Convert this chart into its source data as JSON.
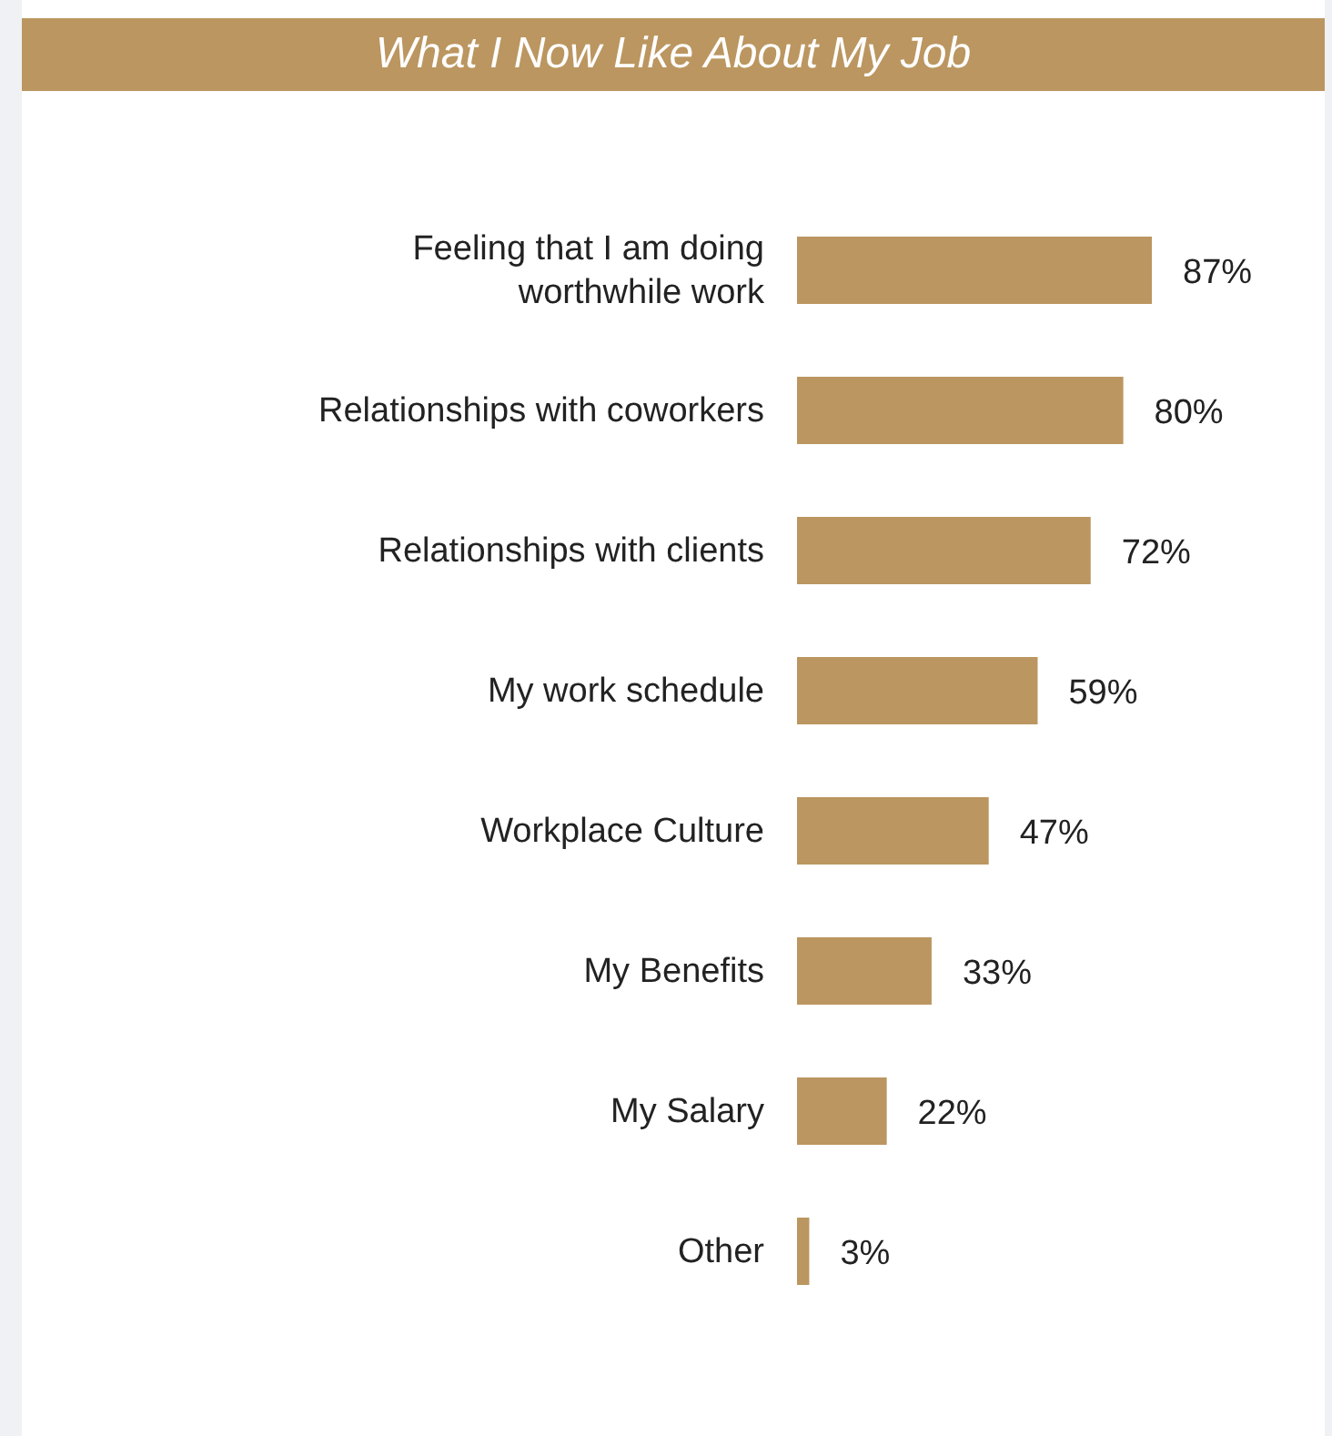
{
  "chart_data": {
    "type": "bar",
    "orientation": "horizontal",
    "title": "What I Now Like About My Job",
    "categories": [
      "Feeling that I am doing worthwhile work",
      "Relationships with coworkers",
      "Relationships with clients",
      "My work schedule",
      "Workplace Culture",
      "My Benefits",
      "My Salary",
      "Other"
    ],
    "values": [
      87,
      80,
      72,
      59,
      47,
      33,
      22,
      3
    ],
    "value_labels": [
      "87%",
      "80%",
      "72%",
      "59%",
      "47%",
      "33%",
      "22%",
      "3%"
    ],
    "color": "#bb9660",
    "grid": false
  }
}
